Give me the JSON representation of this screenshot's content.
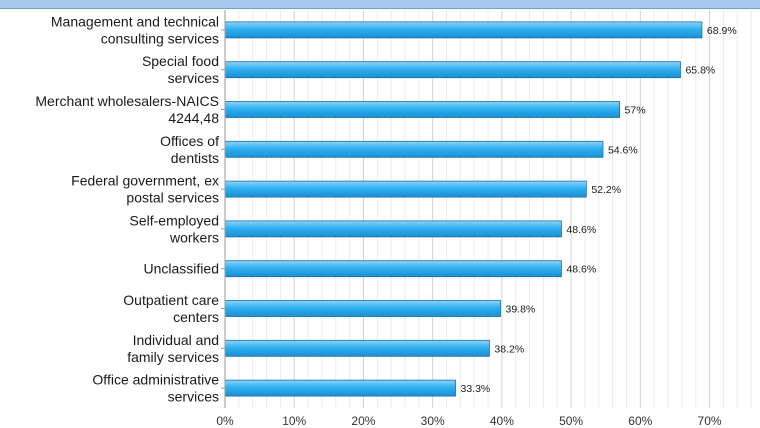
{
  "chart_data": {
    "type": "bar",
    "orientation": "horizontal",
    "categories": [
      [
        "Management and technical",
        "consulting services"
      ],
      [
        "Special food",
        "services"
      ],
      [
        "Merchant wholesalers-NAICS",
        "4244,48"
      ],
      [
        "Offices of",
        "dentists"
      ],
      [
        "Federal government, ex",
        "postal services"
      ],
      [
        "Self-employed",
        "workers"
      ],
      [
        "Unclassified"
      ],
      [
        "Outpatient care",
        "centers"
      ],
      [
        "Individual and",
        "family services"
      ],
      [
        "Office administrative",
        "services"
      ]
    ],
    "values": [
      68.9,
      65.8,
      57,
      54.6,
      52.2,
      48.6,
      48.6,
      39.8,
      38.2,
      33.3
    ],
    "value_labels": [
      "68.9%",
      "65.8%",
      "57%",
      "54.6%",
      "52.2%",
      "48.6%",
      "48.6%",
      "39.8%",
      "38.2%",
      "33.3%"
    ],
    "x_ticks": [
      "0%",
      "10%",
      "20%",
      "30%",
      "40%",
      "50%",
      "60%",
      "70%"
    ],
    "xlim": [
      0,
      77
    ],
    "grid": "vertical minor lines every 2%, major every 10%",
    "bar_color": "#29a9ec",
    "bar_edge_color": "#1a6fa6",
    "header_color": "#a9c7ee"
  }
}
